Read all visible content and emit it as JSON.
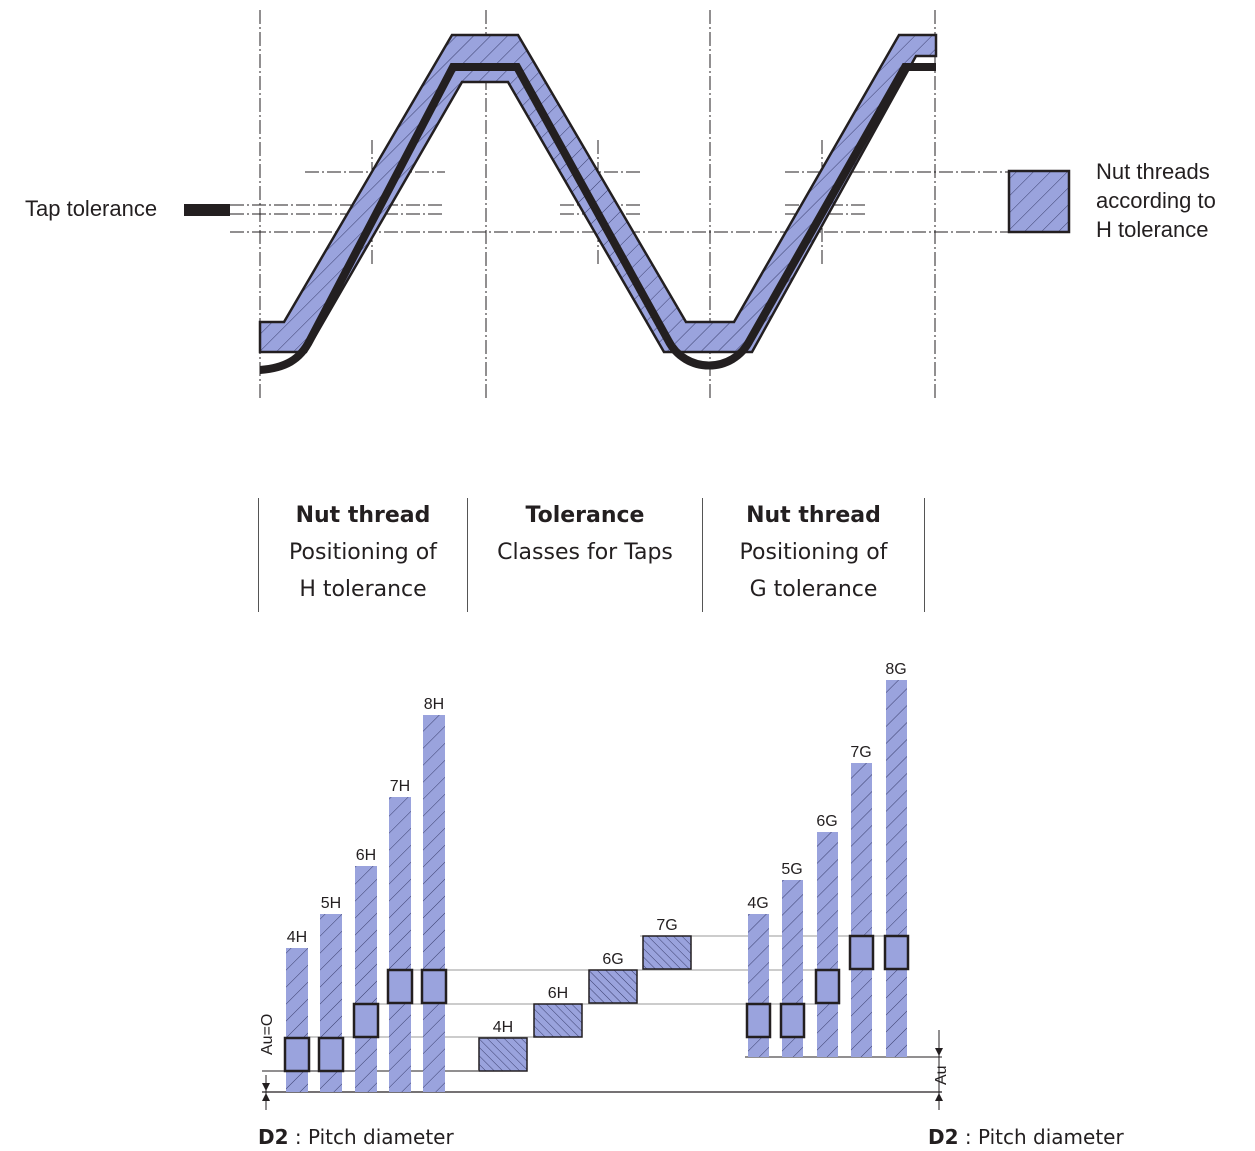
{
  "top": {
    "tap_tolerance_label": "Tap tolerance",
    "legend_lines": [
      "Nut threads",
      "according to",
      "H tolerance"
    ]
  },
  "columns": [
    {
      "title": "Nut thread",
      "line1": "Positioning of",
      "line2": "H tolerance"
    },
    {
      "title": "Tolerance",
      "line1": "Classes for Taps",
      "line2": ""
    },
    {
      "title": "Nut thread",
      "line1": "Positioning of",
      "line2": "G tolerance"
    }
  ],
  "nut_h_classes": [
    "4H",
    "5H",
    "6H",
    "7H",
    "8H"
  ],
  "tap_classes": [
    "4H",
    "6H",
    "6G",
    "7G"
  ],
  "nut_g_classes": [
    "4G",
    "5G",
    "6G",
    "7G",
    "8G"
  ],
  "axis": {
    "au_zero_label": "Au=O",
    "au_label": "Au"
  },
  "footer": {
    "left_bold": "D2",
    "left_text": " : Pitch diameter",
    "right_bold": "D2",
    "right_text": " : Pitch diameter"
  },
  "colors": {
    "fill": "#9aa3dd",
    "stroke": "#231f20",
    "hatch": "#3b3f6e"
  }
}
